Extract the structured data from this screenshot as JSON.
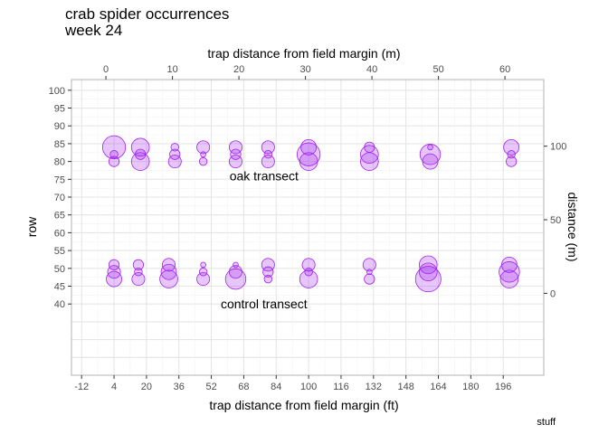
{
  "chart_data": {
    "type": "scatter",
    "title": "crab spider occurrences",
    "subtitle": "week 24",
    "xlabel": "trap distance from field margin (ft)",
    "x2label": "trap distance from field margin (m)",
    "ylabel": "row",
    "y2label": "distance (m)",
    "caption": "stuff",
    "xlim": [
      -17,
      216
    ],
    "ylim": [
      103,
      20
    ],
    "x_ticks": [
      -12,
      4,
      20,
      36,
      52,
      68,
      84,
      100,
      116,
      132,
      148,
      164,
      180,
      196
    ],
    "x2_ticks": [
      0,
      10,
      20,
      30,
      40,
      50,
      60
    ],
    "y_ticks": [
      40,
      45,
      50,
      55,
      60,
      65,
      70,
      75,
      80,
      85,
      90,
      95,
      100
    ],
    "y2_ticks": [
      0,
      50,
      100
    ],
    "grid": true,
    "annotations": [
      {
        "text": "control transect",
        "x": 78,
        "y": 40
      },
      {
        "text": "oak transect",
        "x": 78,
        "y": 76
      }
    ],
    "regions": [
      {
        "kind": "margin",
        "color": "#ff9999",
        "x": [
          -12,
          4
        ],
        "rows": [
          42.5,
          54.5
        ]
      },
      {
        "kind": "transect",
        "color": "#9999ff",
        "x": [
          4,
          208
        ],
        "rows": [
          42.5,
          54.5
        ]
      },
      {
        "kind": "margin",
        "color": "#ff9999",
        "x": [
          -12,
          4
        ],
        "rows": [
          78.5,
          90.5
        ]
      },
      {
        "kind": "transect",
        "color": "#9999ff",
        "x": [
          4,
          208
        ],
        "rows": [
          78.5,
          90.5
        ]
      }
    ],
    "points": [
      {
        "x": 4,
        "y": 47,
        "size": 5
      },
      {
        "x": 4,
        "y": 49,
        "size": 4
      },
      {
        "x": 4,
        "y": 51,
        "size": 3
      },
      {
        "x": 16,
        "y": 47,
        "size": 4
      },
      {
        "x": 16,
        "y": 49,
        "size": 2
      },
      {
        "x": 16,
        "y": 51,
        "size": 3
      },
      {
        "x": 31,
        "y": 47,
        "size": 6
      },
      {
        "x": 31,
        "y": 49,
        "size": 5
      },
      {
        "x": 31,
        "y": 51,
        "size": 4
      },
      {
        "x": 48,
        "y": 47,
        "size": 4
      },
      {
        "x": 48,
        "y": 49,
        "size": 2
      },
      {
        "x": 48,
        "y": 51,
        "size": 1
      },
      {
        "x": 64,
        "y": 47,
        "size": 7
      },
      {
        "x": 64,
        "y": 49,
        "size": 4
      },
      {
        "x": 64,
        "y": 51,
        "size": 1
      },
      {
        "x": 80,
        "y": 47,
        "size": 2
      },
      {
        "x": 80,
        "y": 49,
        "size": 3
      },
      {
        "x": 80,
        "y": 51,
        "size": 4
      },
      {
        "x": 100,
        "y": 47,
        "size": 6
      },
      {
        "x": 100,
        "y": 49,
        "size": 2
      },
      {
        "x": 100,
        "y": 51,
        "size": 4
      },
      {
        "x": 130,
        "y": 47,
        "size": 3
      },
      {
        "x": 130,
        "y": 49,
        "size": 1
      },
      {
        "x": 130,
        "y": 51,
        "size": 4
      },
      {
        "x": 159,
        "y": 47,
        "size": 9
      },
      {
        "x": 159,
        "y": 49,
        "size": 6
      },
      {
        "x": 159,
        "y": 51,
        "size": 6
      },
      {
        "x": 199,
        "y": 47,
        "size": 6
      },
      {
        "x": 199,
        "y": 49,
        "size": 7
      },
      {
        "x": 199,
        "y": 51,
        "size": 5
      },
      {
        "x": 4,
        "y": 80,
        "size": 3
      },
      {
        "x": 4,
        "y": 82,
        "size": 2
      },
      {
        "x": 4,
        "y": 84,
        "size": 8
      },
      {
        "x": 17,
        "y": 80,
        "size": 6
      },
      {
        "x": 17,
        "y": 82,
        "size": 3
      },
      {
        "x": 17,
        "y": 84,
        "size": 6
      },
      {
        "x": 34,
        "y": 80,
        "size": 4
      },
      {
        "x": 34,
        "y": 82,
        "size": 3
      },
      {
        "x": 34,
        "y": 84,
        "size": 2
      },
      {
        "x": 48,
        "y": 80,
        "size": 2
      },
      {
        "x": 48,
        "y": 82,
        "size": 1
      },
      {
        "x": 48,
        "y": 84,
        "size": 4
      },
      {
        "x": 64,
        "y": 80,
        "size": 4
      },
      {
        "x": 64,
        "y": 82,
        "size": 3
      },
      {
        "x": 64,
        "y": 84,
        "size": 4
      },
      {
        "x": 80,
        "y": 80,
        "size": 4
      },
      {
        "x": 80,
        "y": 82,
        "size": 2
      },
      {
        "x": 80,
        "y": 84,
        "size": 4
      },
      {
        "x": 100,
        "y": 80,
        "size": 6
      },
      {
        "x": 100,
        "y": 82,
        "size": 8
      },
      {
        "x": 100,
        "y": 84,
        "size": 5
      },
      {
        "x": 130,
        "y": 80,
        "size": 6
      },
      {
        "x": 130,
        "y": 82,
        "size": 6
      },
      {
        "x": 130,
        "y": 84,
        "size": 3
      },
      {
        "x": 160,
        "y": 80,
        "size": 5
      },
      {
        "x": 160,
        "y": 82,
        "size": 7
      },
      {
        "x": 160,
        "y": 84,
        "size": 1
      },
      {
        "x": 200,
        "y": 80,
        "size": 3
      },
      {
        "x": 200,
        "y": 82,
        "size": 2
      },
      {
        "x": 200,
        "y": 84,
        "size": 5
      }
    ]
  },
  "colors": {
    "panel_border": "#b3b3b3",
    "grid_major": "#e5e5e5",
    "grid_minor": "#f2f2f2",
    "point_fill": "#a020f0",
    "point_stroke": "#a020f0"
  }
}
